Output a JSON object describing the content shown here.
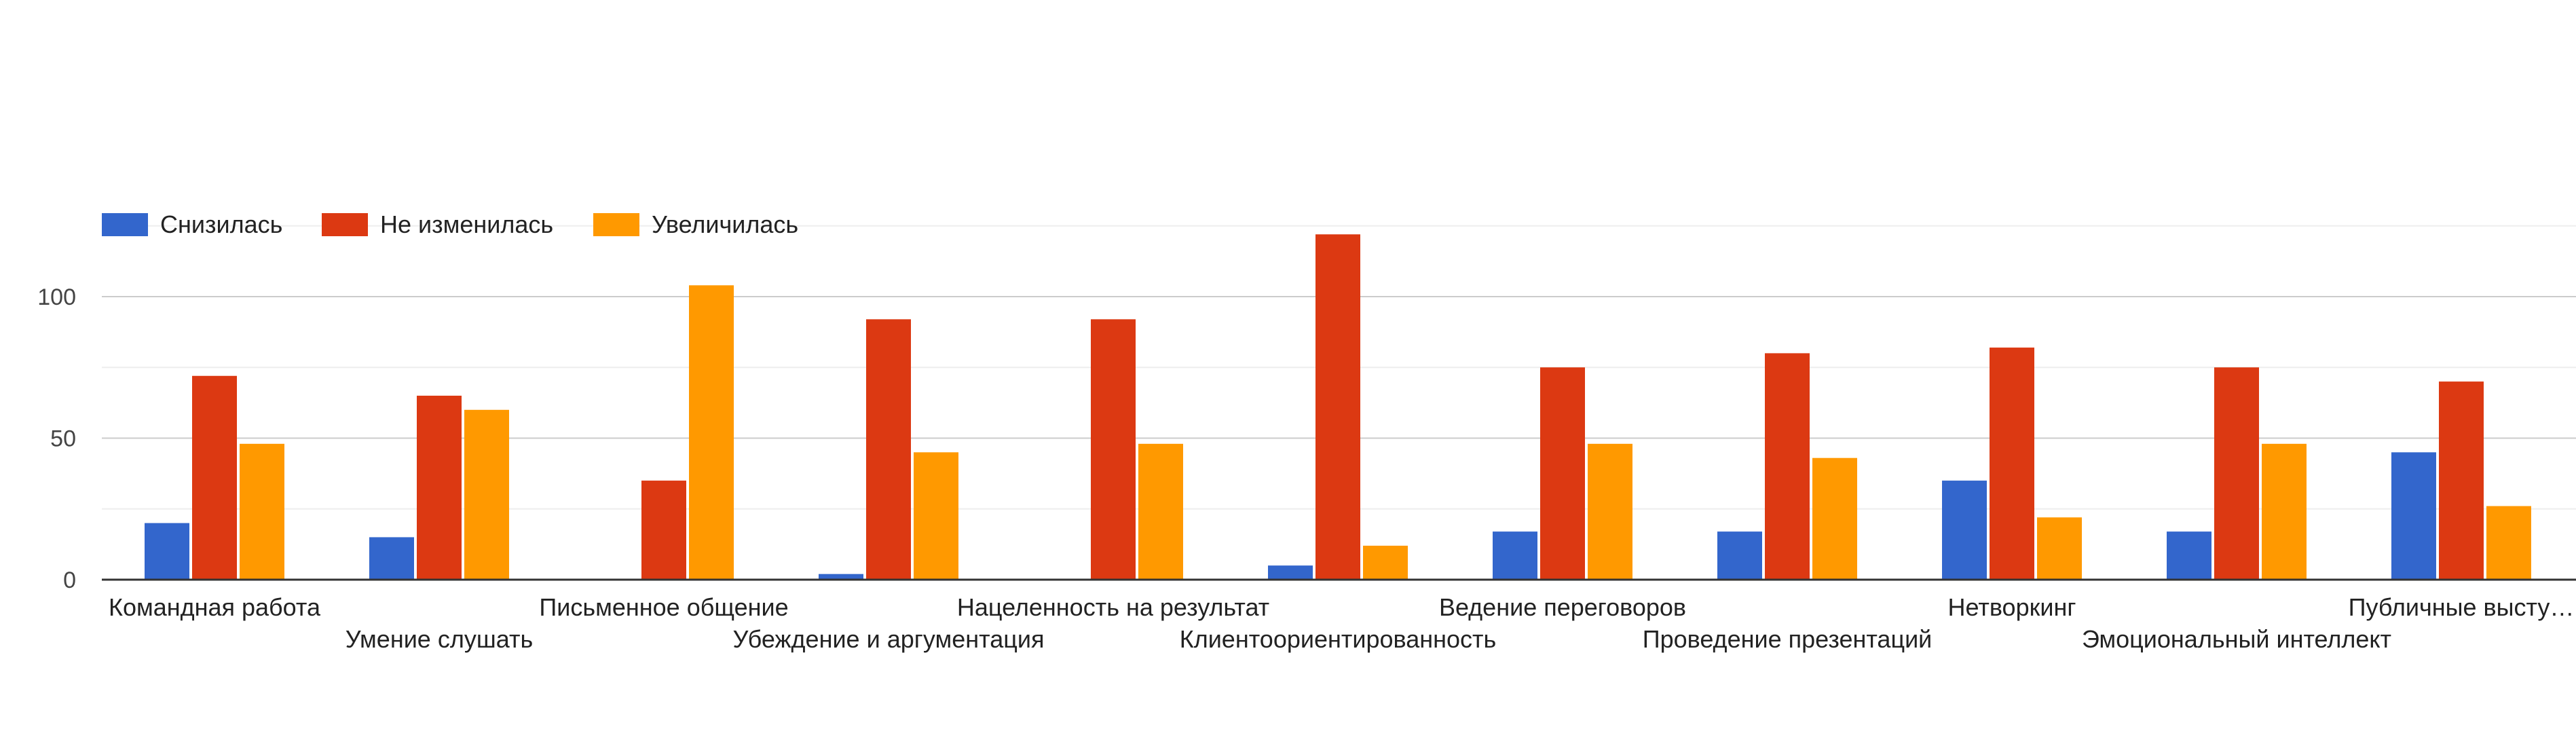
{
  "chart_data": {
    "type": "bar",
    "categories": [
      "Командная работа",
      "Умение слушать",
      "Письменное общение",
      "Убеждение и аргументация",
      "Нацеленность на результат",
      "Клиентоориентированность",
      "Ведение переговоров",
      "Проведение презентаций",
      "Нетворкинг",
      "Эмоциональный интеллект",
      "Публичные высту…"
    ],
    "series": [
      {
        "name": "Снизилась",
        "color": "#3366cc",
        "values": [
          20,
          15,
          0,
          2,
          0,
          5,
          17,
          17,
          35,
          17,
          45
        ]
      },
      {
        "name": "Не изменилась",
        "color": "#dc3912",
        "values": [
          72,
          65,
          35,
          92,
          92,
          122,
          75,
          80,
          82,
          75,
          70
        ]
      },
      {
        "name": "Увеличилась",
        "color": "#ff9900",
        "values": [
          48,
          60,
          104,
          45,
          48,
          12,
          48,
          43,
          22,
          48,
          26
        ]
      }
    ],
    "y_ticks": [
      "0",
      "50",
      "100"
    ],
    "ylim": [
      0,
      125
    ],
    "grid": true,
    "legend_position": "top-left"
  }
}
